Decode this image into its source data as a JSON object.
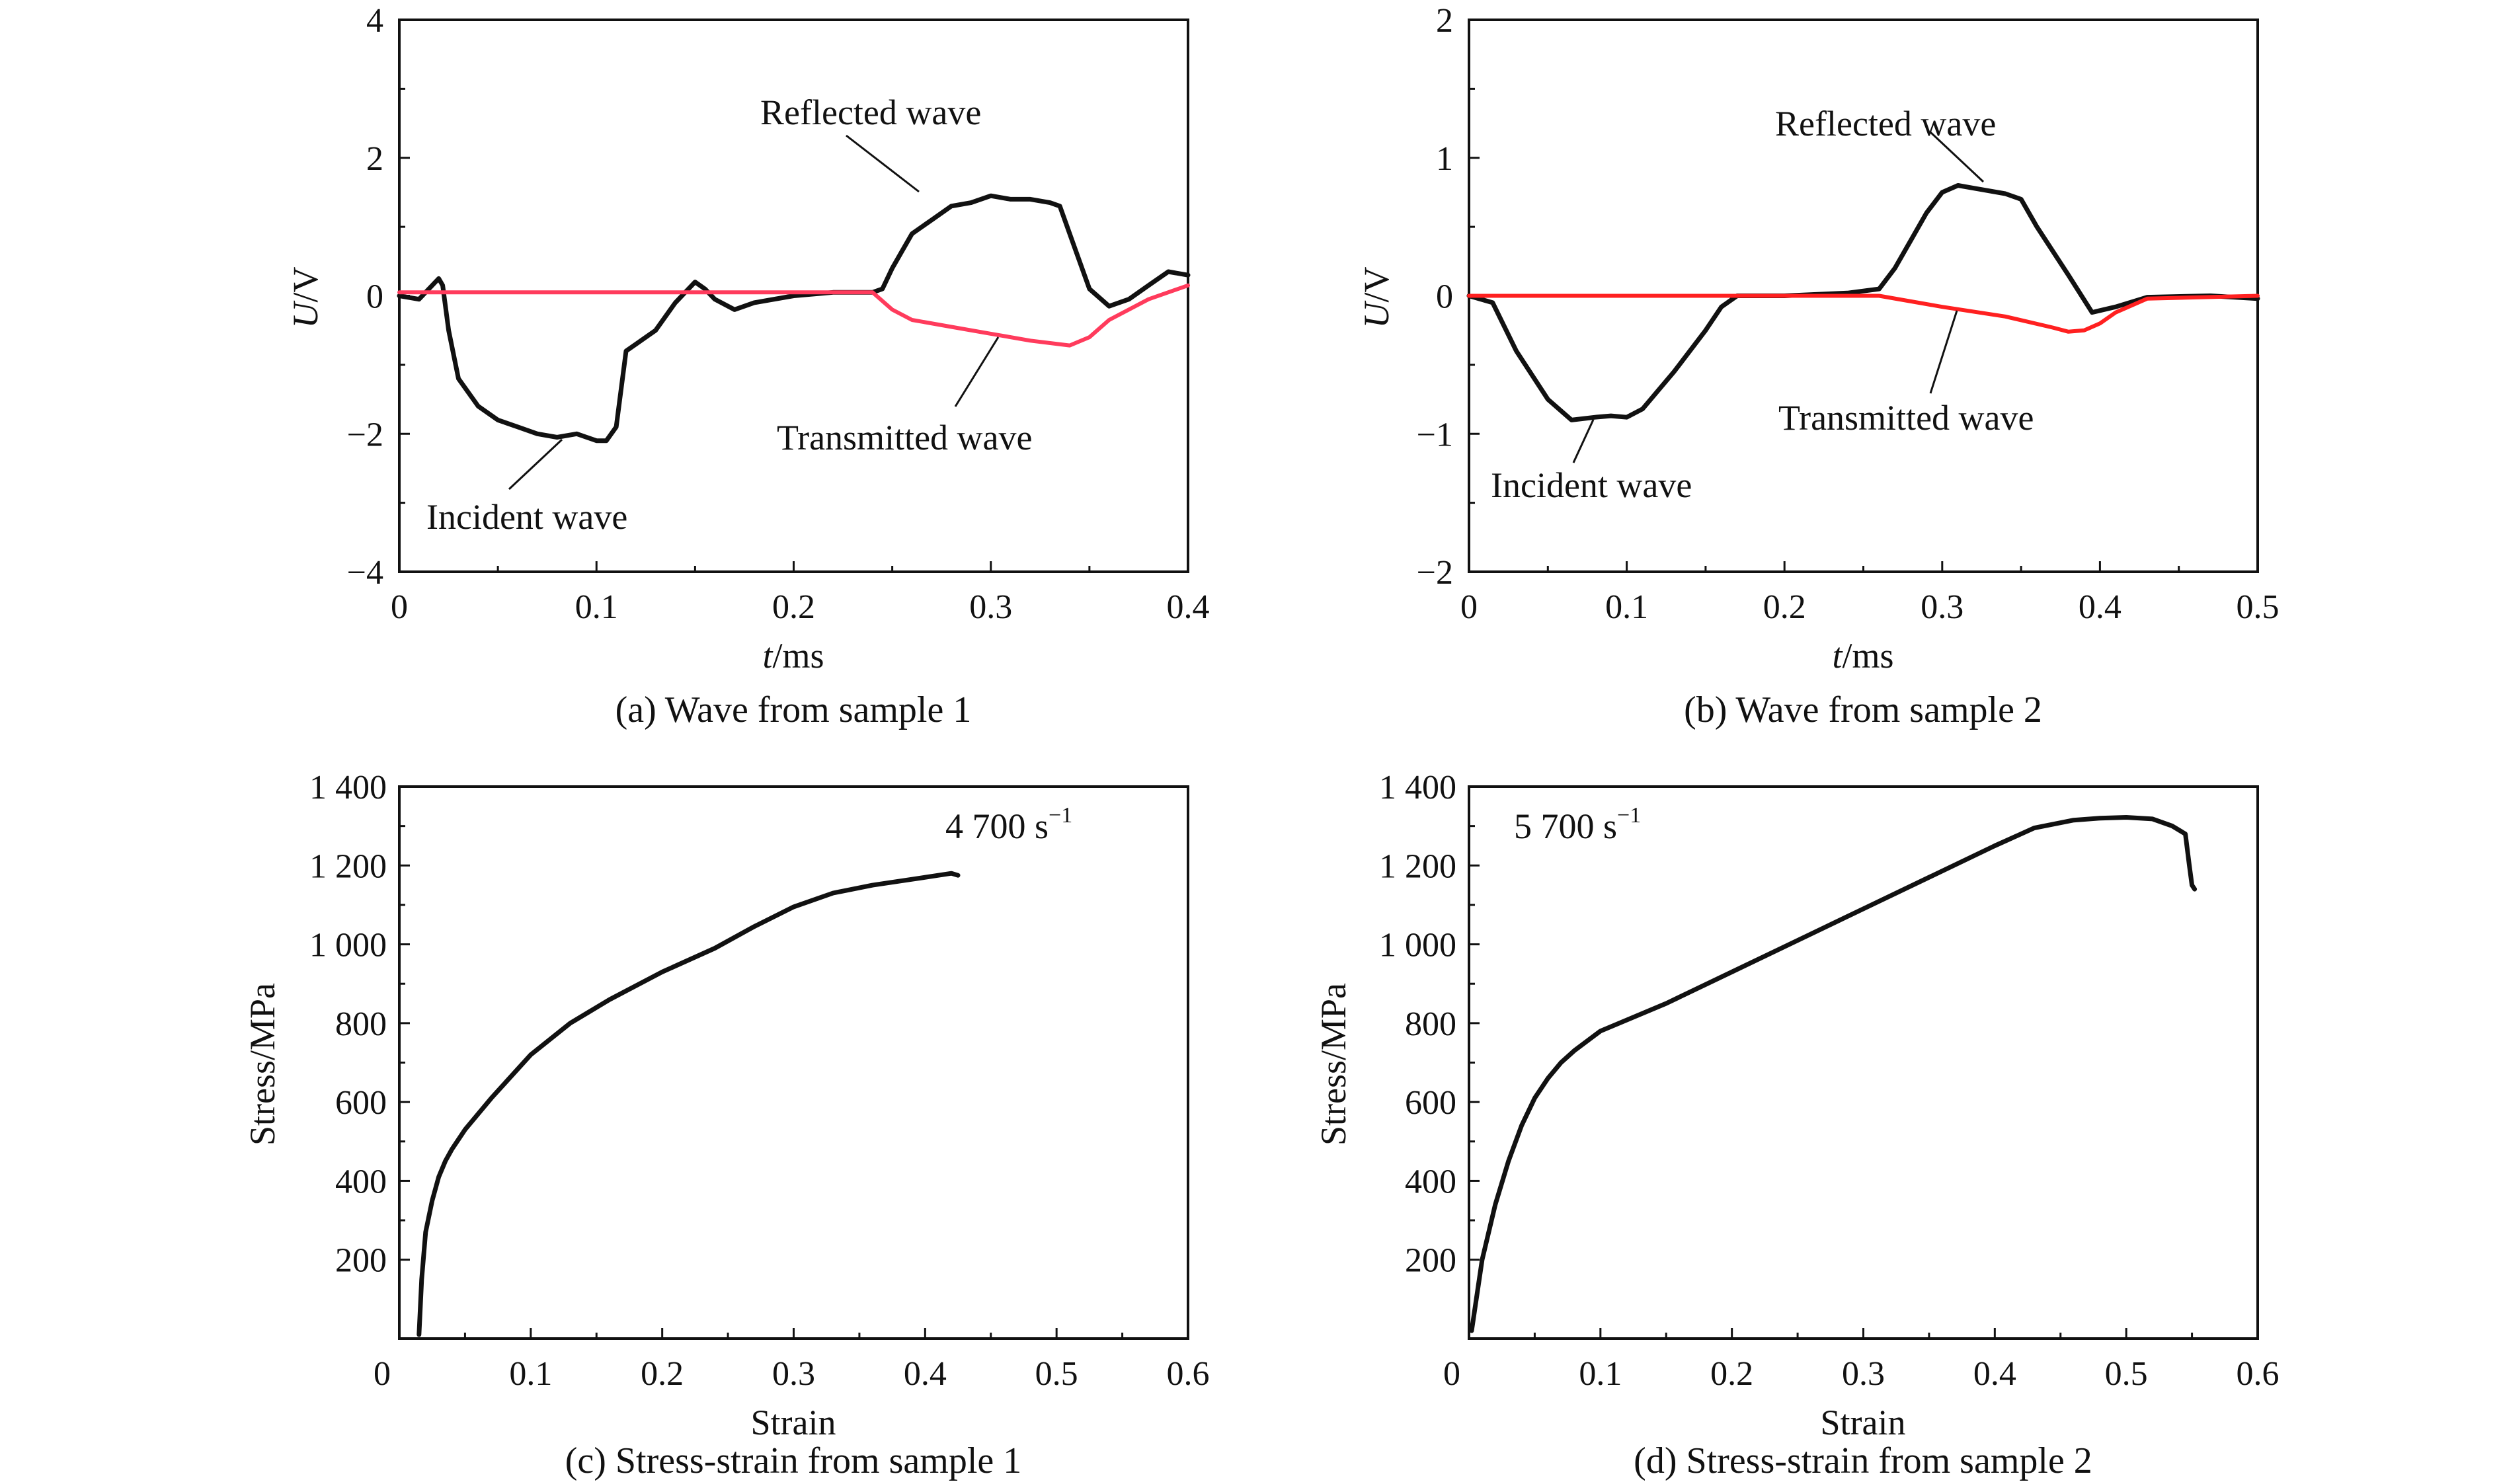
{
  "chart_data": [
    {
      "type": "line",
      "id": "a",
      "caption": "(a) Wave from sample 1",
      "xlabel_italic": "t",
      "xlabel_unit": "/ms",
      "ylabel_italic": "U",
      "ylabel_unit": "/V",
      "xlim": [
        0,
        0.4
      ],
      "ylim": [
        -4,
        4
      ],
      "xticks": [
        0,
        0.1,
        0.2,
        0.3,
        0.4
      ],
      "xtick_labels": [
        "0",
        "0.1",
        "0.2",
        "0.3",
        "0.4"
      ],
      "yticks": [
        -4,
        -2,
        0,
        2,
        4
      ],
      "ytick_labels": [
        "−4",
        "−2",
        "0",
        "2",
        "4"
      ],
      "series": [
        {
          "name": "Incident/Reflected wave",
          "color": "#111111",
          "x": [
            0,
            0.01,
            0.015,
            0.02,
            0.022,
            0.025,
            0.03,
            0.04,
            0.05,
            0.06,
            0.07,
            0.08,
            0.09,
            0.1,
            0.105,
            0.11,
            0.115,
            0.12,
            0.13,
            0.14,
            0.15,
            0.155,
            0.16,
            0.17,
            0.18,
            0.2,
            0.22,
            0.24,
            0.245,
            0.25,
            0.26,
            0.27,
            0.28,
            0.29,
            0.3,
            0.31,
            0.32,
            0.33,
            0.335,
            0.34,
            0.35,
            0.36,
            0.37,
            0.38,
            0.39,
            0.4
          ],
          "y": [
            0,
            -0.05,
            0.1,
            0.25,
            0.15,
            -0.5,
            -1.2,
            -1.6,
            -1.8,
            -1.9,
            -2.0,
            -2.05,
            -2.0,
            -2.1,
            -2.1,
            -1.9,
            -0.8,
            -0.7,
            -0.5,
            -0.1,
            0.2,
            0.1,
            -0.05,
            -0.2,
            -0.1,
            0,
            0.05,
            0.05,
            0.1,
            0.4,
            0.9,
            1.1,
            1.3,
            1.35,
            1.45,
            1.4,
            1.4,
            1.35,
            1.3,
            0.9,
            0.1,
            -0.15,
            -0.05,
            0.15,
            0.35,
            0.3
          ]
        },
        {
          "name": "Transmitted wave",
          "color": "#ff3b5c",
          "x": [
            0,
            0.05,
            0.1,
            0.15,
            0.2,
            0.24,
            0.25,
            0.26,
            0.28,
            0.3,
            0.32,
            0.34,
            0.35,
            0.36,
            0.38,
            0.4
          ],
          "y": [
            0.05,
            0.05,
            0.05,
            0.05,
            0.05,
            0.05,
            -0.2,
            -0.35,
            -0.45,
            -0.55,
            -0.65,
            -0.72,
            -0.6,
            -0.35,
            -0.05,
            0.15
          ]
        }
      ],
      "annotations": [
        "Reflected wave",
        "Transmitted wave",
        "Incident wave"
      ]
    },
    {
      "type": "line",
      "id": "b",
      "caption": "(b) Wave from sample 2",
      "xlabel_italic": "t",
      "xlabel_unit": "/ms",
      "ylabel_italic": "U",
      "ylabel_unit": "/V",
      "xlim": [
        0,
        0.5
      ],
      "ylim": [
        -2,
        2
      ],
      "xticks": [
        0,
        0.1,
        0.2,
        0.3,
        0.4,
        0.5
      ],
      "xtick_labels": [
        "0",
        "0.1",
        "0.2",
        "0.3",
        "0.4",
        "0.5"
      ],
      "yticks": [
        -2,
        -1,
        0,
        1,
        2
      ],
      "ytick_labels": [
        "−2",
        "−1",
        "0",
        "1",
        "2"
      ],
      "series": [
        {
          "name": "Incident/Reflected wave",
          "color": "#111111",
          "x": [
            0,
            0.015,
            0.03,
            0.05,
            0.065,
            0.08,
            0.09,
            0.1,
            0.11,
            0.13,
            0.15,
            0.16,
            0.17,
            0.2,
            0.24,
            0.26,
            0.27,
            0.28,
            0.29,
            0.3,
            0.31,
            0.32,
            0.34,
            0.35,
            0.36,
            0.38,
            0.395,
            0.41,
            0.43,
            0.47,
            0.5
          ],
          "y": [
            0,
            -0.05,
            -0.4,
            -0.75,
            -0.9,
            -0.88,
            -0.87,
            -0.88,
            -0.82,
            -0.55,
            -0.25,
            -0.08,
            0,
            0,
            0.02,
            0.05,
            0.2,
            0.4,
            0.6,
            0.75,
            0.8,
            0.78,
            0.74,
            0.7,
            0.5,
            0.15,
            -0.12,
            -0.08,
            -0.01,
            0,
            -0.02
          ]
        },
        {
          "name": "Transmitted wave",
          "color": "#ff2020",
          "x": [
            0,
            0.1,
            0.2,
            0.26,
            0.3,
            0.34,
            0.37,
            0.38,
            0.39,
            0.4,
            0.41,
            0.43,
            0.5
          ],
          "y": [
            0,
            0,
            0,
            0,
            -0.08,
            -0.15,
            -0.23,
            -0.26,
            -0.25,
            -0.2,
            -0.12,
            -0.02,
            0
          ]
        }
      ],
      "annotations": [
        "Reflected wave",
        "Transmitted wave",
        "Incident wave"
      ]
    },
    {
      "type": "line",
      "id": "c",
      "caption": "(c) Stress-strain from sample 1",
      "xlabel": "Strain",
      "ylabel": "Stress/MPa",
      "xlim": [
        0,
        0.6
      ],
      "ylim": [
        0,
        1400
      ],
      "xticks": [
        0,
        0.1,
        0.2,
        0.3,
        0.4,
        0.5,
        0.6
      ],
      "xtick_labels": [
        "0",
        "0.1",
        "0.2",
        "0.3",
        "0.4",
        "0.5",
        "0.6"
      ],
      "yticks": [
        200,
        400,
        600,
        800,
        1000,
        1200,
        1400
      ],
      "ytick_labels": [
        "200",
        "400",
        "600",
        "800",
        "1 000",
        "1 200",
        "1 400"
      ],
      "series": [
        {
          "name": "4 700 s-1",
          "color": "#111111",
          "x": [
            0.015,
            0.017,
            0.02,
            0.025,
            0.03,
            0.035,
            0.04,
            0.05,
            0.07,
            0.1,
            0.13,
            0.16,
            0.2,
            0.24,
            0.27,
            0.3,
            0.33,
            0.36,
            0.39,
            0.41,
            0.42,
            0.425
          ],
          "y": [
            10,
            150,
            270,
            350,
            410,
            450,
            480,
            530,
            610,
            720,
            800,
            860,
            930,
            990,
            1045,
            1095,
            1130,
            1150,
            1165,
            1175,
            1180,
            1175
          ]
        }
      ],
      "rate_label": "4 700 s",
      "rate_exp": "−1"
    },
    {
      "type": "line",
      "id": "d",
      "caption": "(d) Stress-strain from sample 2",
      "xlabel": "Strain",
      "ylabel": "Stress/MPa",
      "xlim": [
        0,
        0.6
      ],
      "ylim": [
        0,
        1400
      ],
      "xticks": [
        0,
        0.1,
        0.2,
        0.3,
        0.4,
        0.5,
        0.6
      ],
      "xtick_labels": [
        "0",
        "0.1",
        "0.2",
        "0.3",
        "0.4",
        "0.5",
        "0.6"
      ],
      "yticks": [
        200,
        400,
        600,
        800,
        1000,
        1200,
        1400
      ],
      "ytick_labels": [
        "200",
        "400",
        "600",
        "800",
        "1 000",
        "1 200",
        "1 400"
      ],
      "series": [
        {
          "name": "5 700 s-1",
          "color": "#111111",
          "x": [
            0.002,
            0.01,
            0.02,
            0.03,
            0.04,
            0.05,
            0.06,
            0.07,
            0.08,
            0.1,
            0.15,
            0.2,
            0.25,
            0.3,
            0.35,
            0.4,
            0.43,
            0.46,
            0.48,
            0.5,
            0.52,
            0.535,
            0.545,
            0.548,
            0.55,
            0.552
          ],
          "y": [
            20,
            200,
            340,
            450,
            540,
            610,
            660,
            700,
            730,
            780,
            850,
            930,
            1010,
            1090,
            1170,
            1250,
            1295,
            1315,
            1320,
            1322,
            1318,
            1300,
            1280,
            1200,
            1150,
            1140
          ]
        }
      ],
      "rate_label": "5 700 s",
      "rate_exp": "−1"
    }
  ]
}
